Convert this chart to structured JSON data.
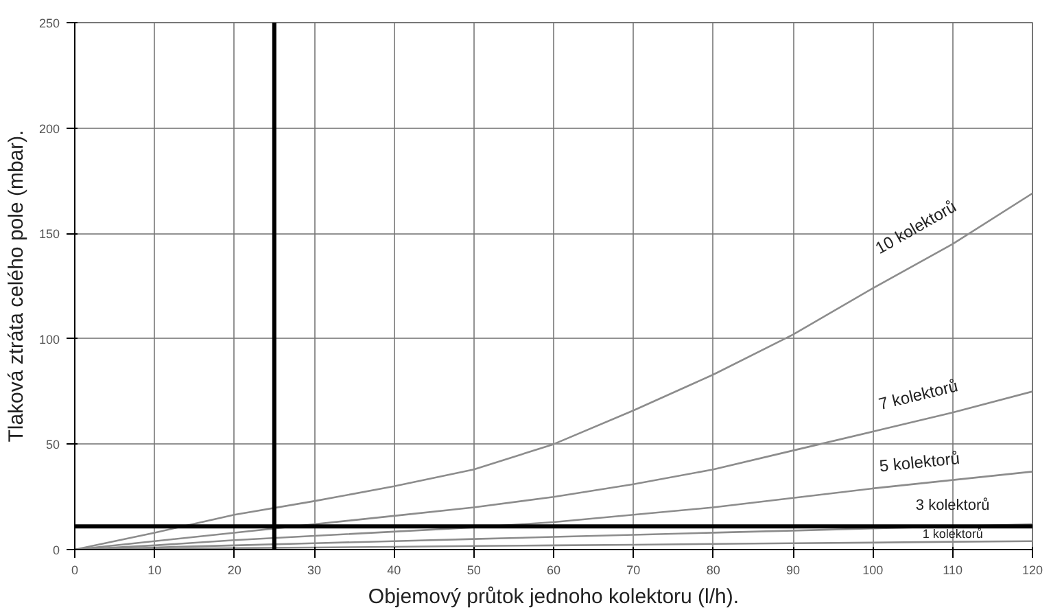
{
  "chart_data": {
    "type": "line",
    "xlabel": "Objemový průtok jednoho kolektoru (l/h).",
    "ylabel": "Tlaková ztráta celého pole (mbar).",
    "x": [
      0,
      10,
      20,
      30,
      40,
      50,
      60,
      70,
      80,
      90,
      100,
      110,
      120
    ],
    "series": [
      {
        "name": "10 kolektorů",
        "color": "#8c8c8c",
        "values": [
          0,
          8,
          16.5,
          23,
          30,
          38,
          50,
          66,
          83,
          102,
          124,
          145,
          169
        ]
      },
      {
        "name": "7 kolektorů",
        "color": "#8c8c8c",
        "values": [
          0,
          4,
          8,
          12,
          16,
          20,
          25,
          31,
          38,
          47,
          56,
          65,
          75
        ]
      },
      {
        "name": "5 kolektorů",
        "color": "#8c8c8c",
        "values": [
          0,
          2,
          4.5,
          6.5,
          8.5,
          10.5,
          13,
          16.5,
          20,
          24.5,
          29,
          33,
          37
        ]
      },
      {
        "name": "3 kolektorů",
        "color": "#8c8c8c",
        "values": [
          0,
          1,
          2,
          3,
          4,
          5,
          6,
          7,
          8,
          9,
          10,
          11,
          12
        ]
      },
      {
        "name": "1 kolektorů",
        "color": "#8c8c8c",
        "values": [
          0,
          0.3,
          0.7,
          1,
          1.3,
          1.7,
          2,
          2.3,
          2.7,
          3,
          3.3,
          3.7,
          4
        ]
      }
    ],
    "xlim": [
      0,
      120
    ],
    "xticks": [
      0,
      10,
      20,
      30,
      40,
      50,
      60,
      70,
      80,
      90,
      100,
      110,
      120
    ],
    "ylim": [
      0,
      250
    ],
    "yticks": [
      0,
      50,
      100,
      150,
      200,
      250
    ],
    "ref_lines": [
      {
        "axis": "x",
        "value": 25,
        "color": "#000000"
      },
      {
        "axis": "y",
        "value": 11,
        "color": "#000000"
      }
    ],
    "grid": true,
    "marker": "none",
    "line_style": "solid"
  }
}
